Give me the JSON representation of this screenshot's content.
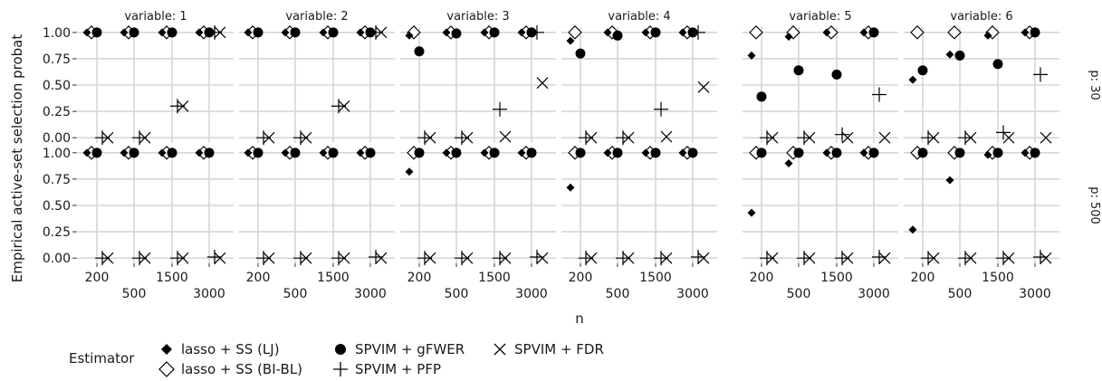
{
  "chart_data": {
    "type": "scatter",
    "y_axis_title": "Empirical active-set selection probat",
    "x_axis_title": "n",
    "facet_col_prefix": "variable: ",
    "facet_cols": [
      "1",
      "2",
      "3",
      "4",
      "5",
      "6"
    ],
    "facet_rows": [
      "p: 30",
      "p: 500"
    ],
    "x_ticks_row1": [
      "200",
      "1500"
    ],
    "x_ticks_row2": [
      "500",
      "3000"
    ],
    "y_ticks": [
      "0.00",
      "0.25",
      "0.50",
      "0.75",
      "1.00"
    ],
    "ylim": [
      -0.05,
      1.05
    ],
    "n_values": [
      200,
      500,
      1500,
      3000
    ],
    "grid": true,
    "legend_position": "bottom-left",
    "legend_title": "Estimator",
    "series": [
      {
        "name": "lasso + SS (LJ)",
        "shape": "diamond-filled",
        "values": {
          "p: 30": [
            [
              1,
              1,
              1,
              1
            ],
            [
              1,
              1,
              1,
              1
            ],
            [
              0.97,
              1,
              1,
              1
            ],
            [
              0.92,
              1,
              1,
              1
            ],
            [
              0.78,
              0.96,
              1,
              1
            ],
            [
              0.55,
              0.79,
              0.97,
              1
            ]
          ],
          "p: 500": [
            [
              1,
              1,
              1,
              1
            ],
            [
              1,
              1,
              1,
              1
            ],
            [
              0.82,
              1,
              1,
              1
            ],
            [
              0.67,
              1,
              1,
              1
            ],
            [
              0.43,
              0.9,
              1,
              1
            ],
            [
              0.27,
              0.74,
              0.98,
              1
            ]
          ]
        }
      },
      {
        "name": "lasso + SS (BI-BL)",
        "shape": "diamond-open",
        "values": {
          "p: 30": [
            [
              1,
              1,
              1,
              1
            ],
            [
              1,
              1,
              1,
              1
            ],
            [
              1,
              1,
              1,
              1
            ],
            [
              1,
              1,
              1,
              1
            ],
            [
              1,
              1,
              1,
              1
            ],
            [
              1,
              1,
              1,
              1
            ]
          ],
          "p: 500": [
            [
              1,
              1,
              1,
              1
            ],
            [
              1,
              1,
              1,
              1
            ],
            [
              1,
              1,
              1,
              1
            ],
            [
              1,
              1,
              1,
              1
            ],
            [
              1,
              1,
              1,
              1
            ],
            [
              1,
              1,
              1,
              1
            ]
          ]
        }
      },
      {
        "name": "SPVIM + gFWER",
        "shape": "circle-filled",
        "values": {
          "p: 30": [
            [
              1,
              1,
              1,
              1
            ],
            [
              1,
              1,
              1,
              1
            ],
            [
              0.82,
              0.99,
              1,
              1
            ],
            [
              0.8,
              0.97,
              1,
              1
            ],
            [
              0.39,
              0.64,
              0.6,
              1
            ],
            [
              0.64,
              0.78,
              0.7,
              1
            ]
          ],
          "p: 500": [
            [
              1,
              1,
              1,
              1
            ],
            [
              1,
              1,
              1,
              1
            ],
            [
              1,
              1,
              1,
              1
            ],
            [
              1,
              1,
              1,
              1
            ],
            [
              1,
              1,
              1,
              1
            ],
            [
              1,
              1,
              1,
              1
            ]
          ]
        }
      },
      {
        "name": "SPVIM + PFP",
        "shape": "plus",
        "values": {
          "p: 30": [
            [
              0,
              0,
              0.3,
              1
            ],
            [
              0,
              0,
              0.3,
              1
            ],
            [
              0,
              0,
              0.27,
              1
            ],
            [
              0,
              0,
              0.27,
              1
            ],
            [
              0,
              0,
              0.03,
              0.41
            ],
            [
              0,
              0,
              0.05,
              0.6
            ]
          ],
          "p: 500": [
            [
              0,
              0,
              0,
              0.01
            ],
            [
              0,
              0,
              0,
              0.01
            ],
            [
              0,
              0,
              0,
              0.01
            ],
            [
              0,
              0,
              0,
              0.01
            ],
            [
              0,
              0,
              0,
              0.01
            ],
            [
              0,
              0,
              0,
              0.01
            ]
          ]
        }
      },
      {
        "name": "SPVIM + FDR",
        "shape": "x",
        "values": {
          "p: 30": [
            [
              0,
              0,
              0.3,
              1
            ],
            [
              0,
              0,
              0.3,
              1
            ],
            [
              0,
              0,
              0.01,
              0.52
            ],
            [
              0,
              0,
              0.01,
              0.48
            ],
            [
              0,
              0,
              0,
              0
            ],
            [
              0,
              0,
              0,
              0
            ]
          ],
          "p: 500": [
            [
              0,
              0,
              0,
              0
            ],
            [
              0,
              0,
              0,
              0
            ],
            [
              0,
              0,
              0,
              0
            ],
            [
              0,
              0,
              0,
              0
            ],
            [
              0,
              0,
              0,
              0
            ],
            [
              0,
              0,
              0,
              0
            ]
          ]
        }
      }
    ]
  }
}
